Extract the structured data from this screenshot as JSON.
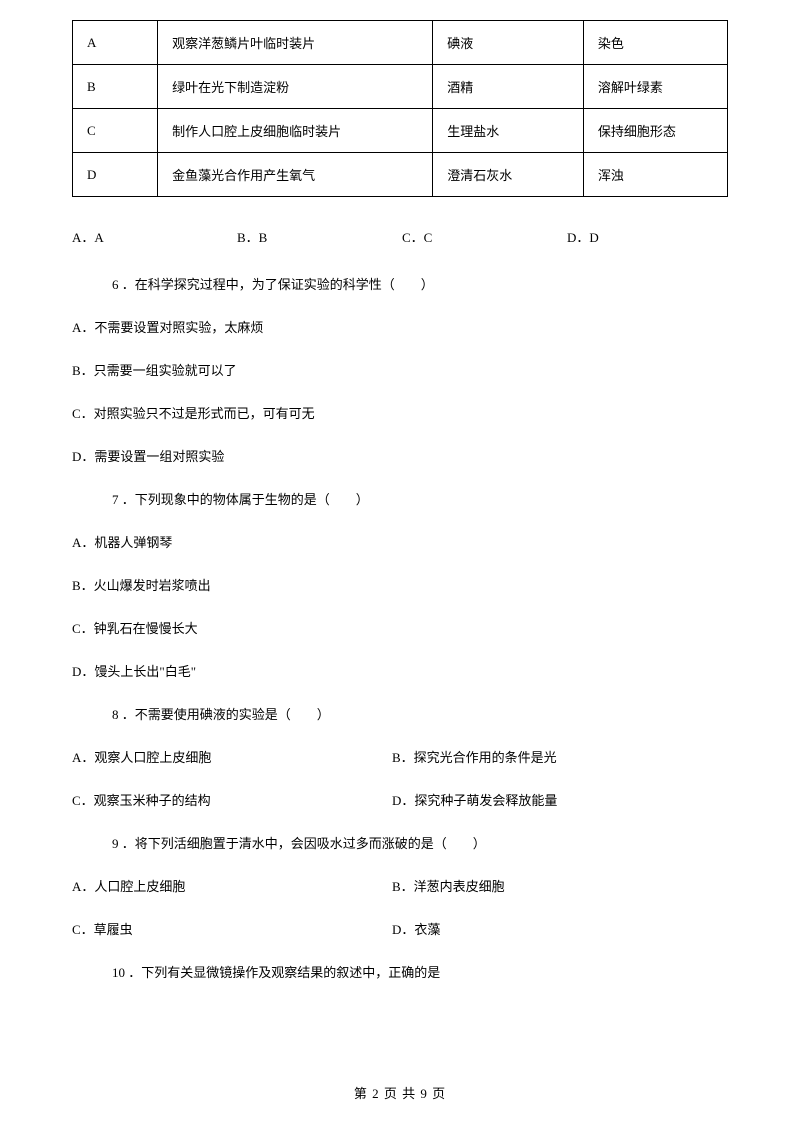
{
  "table": {
    "rows": [
      {
        "col1": "A",
        "col2": "观察洋葱鳞片叶临时装片",
        "col3": "碘液",
        "col4": "染色"
      },
      {
        "col1": "B",
        "col2": "绿叶在光下制造淀粉",
        "col3": "酒精",
        "col4": "溶解叶绿素"
      },
      {
        "col1": "C",
        "col2": "制作人口腔上皮细胞临时装片",
        "col3": "生理盐水",
        "col4": "保持细胞形态"
      },
      {
        "col1": "D",
        "col2": "金鱼藻光合作用产生氧气",
        "col3": "澄清石灰水",
        "col4": "浑浊"
      }
    ]
  },
  "q5options": {
    "a": "A．A",
    "b": "B．B",
    "c": "C．C",
    "d": "D．D"
  },
  "q6": {
    "stem": "6 ．在科学探究过程中，为了保证实验的科学性（　　）",
    "a": "A．不需要设置对照实验，太麻烦",
    "b": "B．只需要一组实验就可以了",
    "c": "C．对照实验只不过是形式而已，可有可无",
    "d": "D．需要设置一组对照实验"
  },
  "q7": {
    "stem": "7 ．下列现象中的物体属于生物的是（　　）",
    "a": "A．机器人弹钢琴",
    "b": "B．火山爆发时岩浆喷出",
    "c": "C．钟乳石在慢慢长大",
    "d": "D．馒头上长出\"白毛\""
  },
  "q8": {
    "stem": "8 ．不需要使用碘液的实验是（　　）",
    "a": "A．观察人口腔上皮细胞",
    "b": "B．探究光合作用的条件是光",
    "c": "C．观察玉米种子的结构",
    "d": "D．探究种子萌发会释放能量"
  },
  "q9": {
    "stem": "9 ．将下列活细胞置于清水中，会因吸水过多而涨破的是（　　）",
    "a": "A．人口腔上皮细胞",
    "b": "B．洋葱内表皮细胞",
    "c": "C．草履虫",
    "d": "D．衣藻"
  },
  "q10": {
    "stem": "10 ．下列有关显微镜操作及观察结果的叙述中，正确的是"
  },
  "footer": "第 2 页 共 9 页"
}
